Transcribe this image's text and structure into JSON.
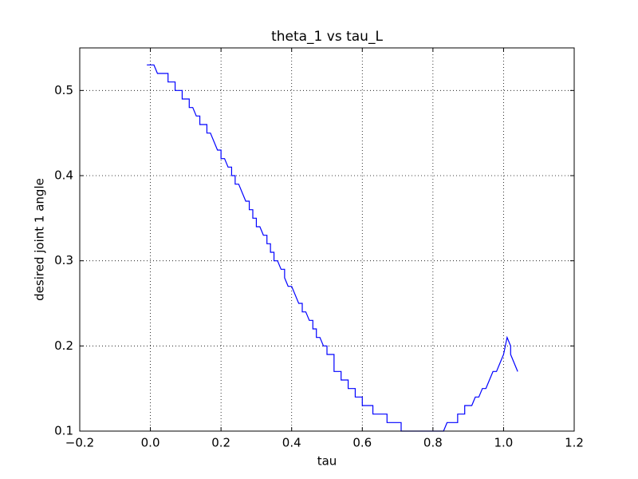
{
  "chart_data": {
    "type": "line",
    "title": "theta_1 vs tau_L",
    "x_label": "tau",
    "y_label": "desired joint 1 angle",
    "color": "#0000ff",
    "grid": true,
    "xlim": [
      -0.2,
      1.2
    ],
    "ylim": [
      0.1,
      0.55
    ],
    "xticks": [
      {
        "value": -0.2,
        "label": "−0.2"
      },
      {
        "value": 0,
        "label": "0.0"
      },
      0.2,
      0.4,
      0.6,
      0.8,
      {
        "value": 1,
        "label": "1.0"
      },
      1.2
    ],
    "yticks": [
      0.1,
      0.2,
      0.3,
      0.4,
      0.5
    ],
    "x": [
      -0.01,
      0.01,
      0.02,
      0.05,
      0.05,
      0.07,
      0.07,
      0.09,
      0.09,
      0.11,
      0.11,
      0.12,
      0.13,
      0.14,
      0.14,
      0.16,
      0.16,
      0.17,
      0.19,
      0.2,
      0.2,
      0.21,
      0.22,
      0.23,
      0.23,
      0.24,
      0.24,
      0.25,
      0.27,
      0.28,
      0.28,
      0.29,
      0.29,
      0.3,
      0.3,
      0.31,
      0.32,
      0.33,
      0.33,
      0.34,
      0.34,
      0.35,
      0.35,
      0.36,
      0.37,
      0.38,
      0.38,
      0.39,
      0.4,
      0.42,
      0.43,
      0.43,
      0.44,
      0.45,
      0.46,
      0.46,
      0.47,
      0.47,
      0.48,
      0.49,
      0.5,
      0.5,
      0.52,
      0.52,
      0.52,
      0.54,
      0.54,
      0.56,
      0.56,
      0.58,
      0.58,
      0.6,
      0.6,
      0.63,
      0.63,
      0.67,
      0.67,
      0.71,
      0.71,
      0.83,
      0.84,
      0.87,
      0.87,
      0.89,
      0.89,
      0.91,
      0.92,
      0.93,
      0.94,
      0.95,
      0.97,
      0.98,
      0.99,
      1.0,
      1.01,
      1.02,
      1.02,
      1.04
    ],
    "values": [
      0.53,
      0.53,
      0.52,
      0.52,
      0.51,
      0.51,
      0.5,
      0.5,
      0.49,
      0.49,
      0.48,
      0.48,
      0.47,
      0.47,
      0.46,
      0.46,
      0.45,
      0.45,
      0.43,
      0.43,
      0.42,
      0.42,
      0.41,
      0.41,
      0.4,
      0.4,
      0.39,
      0.39,
      0.37,
      0.37,
      0.36,
      0.36,
      0.35,
      0.35,
      0.34,
      0.34,
      0.33,
      0.33,
      0.32,
      0.32,
      0.31,
      0.31,
      0.3,
      0.3,
      0.29,
      0.29,
      0.28,
      0.27,
      0.27,
      0.25,
      0.25,
      0.24,
      0.24,
      0.23,
      0.23,
      0.22,
      0.22,
      0.21,
      0.21,
      0.2,
      0.2,
      0.19,
      0.19,
      0.18,
      0.17,
      0.17,
      0.16,
      0.16,
      0.15,
      0.15,
      0.14,
      0.14,
      0.13,
      0.13,
      0.12,
      0.12,
      0.11,
      0.11,
      0.1,
      0.1,
      0.11,
      0.11,
      0.12,
      0.12,
      0.13,
      0.13,
      0.14,
      0.14,
      0.15,
      0.15,
      0.17,
      0.17,
      0.18,
      0.19,
      0.21,
      0.2,
      0.19,
      0.17
    ]
  }
}
